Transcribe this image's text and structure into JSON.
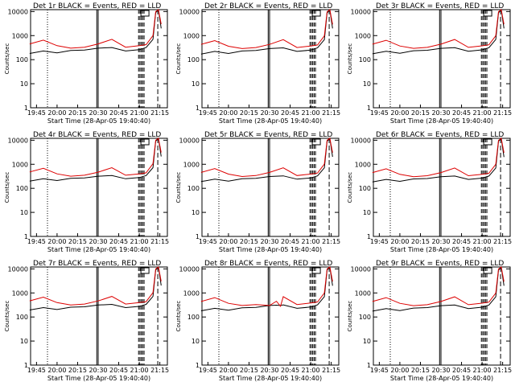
{
  "figure": {
    "x_ticks": [
      "19:45",
      "20:00",
      "20:15",
      "20:30",
      "20:45",
      "21:00",
      "21:15"
    ],
    "y_ticks": [
      "1",
      "10",
      "100",
      "1000",
      "10000"
    ],
    "ylabel": "Counts/sec",
    "xlabel": "Start Time (28-Apr-05 19:40:40)"
  },
  "colors": {
    "events": "#000000",
    "lld": "#dd0000"
  },
  "chart_data": [
    {
      "type": "line",
      "title": "Det 1r BLACK = Events, RED = LLD",
      "xlabel": "Start Time (28-Apr-05 19:40:40)",
      "ylabel": "Counts/sec",
      "yscale": "log",
      "ylim": [
        1,
        12000
      ],
      "x": [
        "19:40",
        "19:50",
        "20:00",
        "20:10",
        "20:20",
        "20:30",
        "20:40",
        "20:50",
        "21:00",
        "21:05",
        "21:10",
        "21:12",
        "21:14",
        "21:16"
      ],
      "series": [
        {
          "name": "Events",
          "color": "#000000",
          "values": [
            180,
            230,
            190,
            240,
            250,
            300,
            320,
            230,
            260,
            320,
            700,
            9000,
            12000,
            2000
          ]
        },
        {
          "name": "LLD",
          "color": "#dd0000",
          "values": [
            450,
            650,
            380,
            300,
            330,
            450,
            700,
            330,
            380,
            420,
            1000,
            10000,
            12000,
            3000
          ]
        }
      ]
    },
    {
      "type": "line",
      "title": "Det 2r BLACK = Events, RED = LLD",
      "xlabel": "Start Time (28-Apr-05 19:40:40)",
      "ylabel": "Counts/sec",
      "yscale": "log",
      "ylim": [
        1,
        12000
      ],
      "x": [
        "19:40",
        "19:50",
        "20:00",
        "20:10",
        "20:20",
        "20:30",
        "20:40",
        "20:50",
        "21:00",
        "21:05",
        "21:10",
        "21:12",
        "21:14",
        "21:16"
      ],
      "series": [
        {
          "name": "Events",
          "color": "#000000",
          "values": [
            170,
            220,
            180,
            230,
            240,
            290,
            310,
            220,
            250,
            310,
            680,
            8800,
            12000,
            2000
          ]
        },
        {
          "name": "LLD",
          "color": "#dd0000",
          "values": [
            430,
            620,
            360,
            290,
            320,
            430,
            680,
            320,
            370,
            410,
            980,
            9800,
            12000,
            2900
          ]
        }
      ]
    },
    {
      "type": "line",
      "title": "Det 3r BLACK = Events, RED = LLD",
      "xlabel": "Start Time (28-Apr-05 19:40:40)",
      "ylabel": "Counts/sec",
      "yscale": "log",
      "ylim": [
        1,
        12000
      ],
      "x": [
        "19:40",
        "19:50",
        "20:00",
        "20:10",
        "20:20",
        "20:30",
        "20:40",
        "20:50",
        "21:00",
        "21:05",
        "21:10",
        "21:12",
        "21:14",
        "21:16"
      ],
      "series": [
        {
          "name": "Events",
          "color": "#000000",
          "values": [
            175,
            225,
            185,
            235,
            245,
            295,
            315,
            225,
            255,
            315,
            690,
            8900,
            12000,
            2000
          ]
        },
        {
          "name": "LLD",
          "color": "#dd0000",
          "values": [
            440,
            640,
            370,
            295,
            325,
            440,
            690,
            325,
            375,
            415,
            990,
            9900,
            12000,
            2950
          ]
        }
      ]
    },
    {
      "type": "line",
      "title": "Det 4r BLACK = Events, RED = LLD",
      "xlabel": "Start Time (28-Apr-05 19:40:40)",
      "ylabel": "Counts/sec",
      "yscale": "log",
      "ylim": [
        1,
        12000
      ],
      "x": [
        "19:40",
        "19:50",
        "20:00",
        "20:10",
        "20:20",
        "20:30",
        "20:40",
        "20:50",
        "21:00",
        "21:05",
        "21:10",
        "21:12",
        "21:14",
        "21:16"
      ],
      "series": [
        {
          "name": "Events",
          "color": "#000000",
          "values": [
            200,
            250,
            210,
            260,
            270,
            320,
            340,
            250,
            280,
            340,
            720,
            9200,
            12000,
            2100
          ]
        },
        {
          "name": "LLD",
          "color": "#dd0000",
          "values": [
            480,
            680,
            400,
            320,
            350,
            470,
            720,
            350,
            400,
            440,
            1050,
            10000,
            12000,
            3100
          ]
        }
      ]
    },
    {
      "type": "line",
      "title": "Det 5r BLACK = Events, RED = LLD",
      "xlabel": "Start Time (28-Apr-05 19:40:40)",
      "ylabel": "Counts/sec",
      "yscale": "log",
      "ylim": [
        1,
        12000
      ],
      "x": [
        "19:40",
        "19:50",
        "20:00",
        "20:10",
        "20:20",
        "20:30",
        "20:40",
        "20:50",
        "21:00",
        "21:05",
        "21:10",
        "21:12",
        "21:14",
        "21:16"
      ],
      "series": [
        {
          "name": "Events",
          "color": "#000000",
          "values": [
            190,
            240,
            200,
            250,
            260,
            310,
            330,
            240,
            270,
            330,
            710,
            9100,
            12000,
            2050
          ]
        },
        {
          "name": "LLD",
          "color": "#dd0000",
          "values": [
            460,
            660,
            390,
            310,
            340,
            460,
            710,
            340,
            390,
            430,
            1020,
            10000,
            12000,
            3050
          ]
        }
      ]
    },
    {
      "type": "line",
      "title": "Det 6r BLACK = Events, RED = LLD",
      "xlabel": "Start Time (28-Apr-05 19:40:40)",
      "ylabel": "Counts/sec",
      "yscale": "log",
      "ylim": [
        1,
        12000
      ],
      "x": [
        "19:40",
        "19:50",
        "20:00",
        "20:10",
        "20:20",
        "20:30",
        "20:40",
        "20:50",
        "21:00",
        "21:05",
        "21:10",
        "21:12",
        "21:14",
        "21:16"
      ],
      "series": [
        {
          "name": "Events",
          "color": "#000000",
          "values": [
            185,
            235,
            195,
            245,
            255,
            305,
            325,
            235,
            265,
            325,
            700,
            9000,
            12000,
            2000
          ]
        },
        {
          "name": "LLD",
          "color": "#dd0000",
          "values": [
            450,
            650,
            380,
            305,
            335,
            450,
            700,
            335,
            385,
            425,
            1000,
            9900,
            12000,
            3000
          ]
        }
      ]
    },
    {
      "type": "line",
      "title": "Det 7r BLACK = Events, RED = LLD",
      "xlabel": "Start Time (28-Apr-05 19:40:40)",
      "ylabel": "Counts/sec",
      "yscale": "log",
      "ylim": [
        1,
        12000
      ],
      "x": [
        "19:40",
        "19:50",
        "20:00",
        "20:10",
        "20:20",
        "20:30",
        "20:40",
        "20:50",
        "21:00",
        "21:05",
        "21:10",
        "21:12",
        "21:14",
        "21:16"
      ],
      "series": [
        {
          "name": "Events",
          "color": "#000000",
          "values": [
            195,
            245,
            205,
            255,
            265,
            315,
            335,
            245,
            275,
            335,
            715,
            9100,
            12000,
            2050
          ]
        },
        {
          "name": "LLD",
          "color": "#dd0000",
          "values": [
            470,
            670,
            395,
            315,
            345,
            465,
            715,
            345,
            395,
            435,
            1030,
            10000,
            12000,
            3050
          ]
        }
      ]
    },
    {
      "type": "line",
      "title": "Det 8r BLACK = Events, RED = LLD",
      "xlabel": "Start Time (28-Apr-05 19:40:40)",
      "ylabel": "Counts/sec",
      "yscale": "log",
      "ylim": [
        1,
        12000
      ],
      "x": [
        "19:40",
        "19:50",
        "20:00",
        "20:10",
        "20:20",
        "20:30",
        "20:35",
        "20:38",
        "20:40",
        "20:50",
        "21:00",
        "21:05",
        "21:10",
        "21:12",
        "21:14",
        "21:16"
      ],
      "series": [
        {
          "name": "Events",
          "color": "#000000",
          "values": [
            180,
            230,
            190,
            240,
            250,
            300,
            310,
            300,
            320,
            230,
            260,
            320,
            700,
            9000,
            12000,
            2000
          ]
        },
        {
          "name": "LLD",
          "color": "#dd0000",
          "values": [
            440,
            640,
            370,
            300,
            330,
            300,
            450,
            280,
            700,
            330,
            380,
            420,
            1000,
            10000,
            12000,
            3000
          ]
        }
      ]
    },
    {
      "type": "line",
      "title": "Det 9r BLACK = Events, RED = LLD",
      "xlabel": "Start Time (28-Apr-05 19:40:40)",
      "ylabel": "Counts/sec",
      "yscale": "log",
      "ylim": [
        1,
        12000
      ],
      "x": [
        "19:40",
        "19:50",
        "20:00",
        "20:10",
        "20:20",
        "20:30",
        "20:40",
        "20:50",
        "21:00",
        "21:05",
        "21:10",
        "21:12",
        "21:14",
        "21:16"
      ],
      "series": [
        {
          "name": "Events",
          "color": "#000000",
          "values": [
            175,
            225,
            185,
            235,
            245,
            295,
            315,
            225,
            255,
            315,
            690,
            8900,
            12000,
            2000
          ]
        },
        {
          "name": "LLD",
          "color": "#dd0000",
          "values": [
            440,
            640,
            370,
            295,
            325,
            440,
            690,
            325,
            375,
            415,
            990,
            9900,
            12000,
            2950
          ]
        }
      ]
    }
  ]
}
